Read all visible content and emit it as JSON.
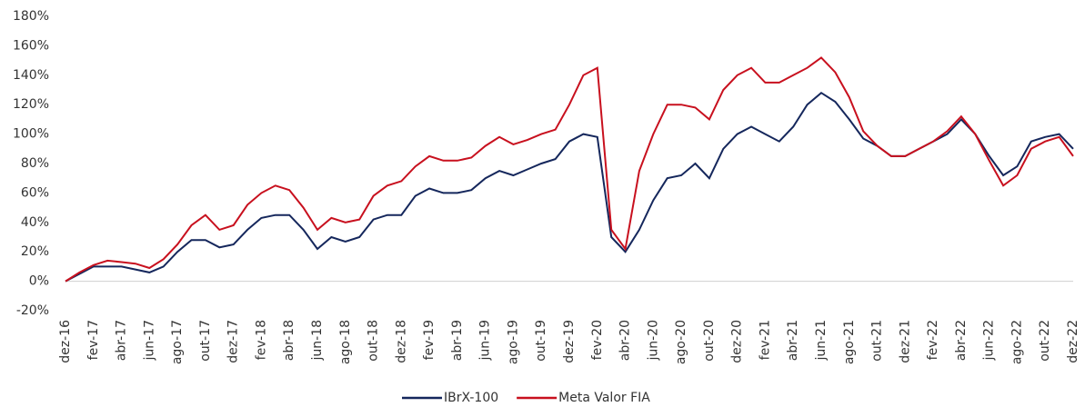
{
  "chart_data": {
    "type": "line",
    "categories": [
      "dez-16",
      null,
      "fev-17",
      null,
      "abr-17",
      null,
      "jun-17",
      null,
      "ago-17",
      null,
      "out-17",
      null,
      "dez-17",
      null,
      "fev-18",
      null,
      "abr-18",
      null,
      "jun-18",
      null,
      "ago-18",
      null,
      "out-18",
      null,
      "dez-18",
      null,
      "fev-19",
      null,
      "abr-19",
      null,
      "jun-19",
      null,
      "ago-19",
      null,
      "out-19",
      null,
      "dez-19",
      null,
      "fev-20",
      null,
      "abr-20",
      null,
      "jun-20",
      null,
      "ago-20",
      null,
      "out-20",
      null,
      "dez-20",
      null,
      "fev-21",
      null,
      "abr-21",
      null,
      "jun-21",
      null,
      "ago-21",
      null,
      "out-21",
      null,
      "dez-21",
      null,
      "fev-22",
      null,
      "abr-22",
      null,
      "jun-22",
      null,
      "ago-22",
      null,
      "out-22",
      null,
      "dez-22"
    ],
    "series": [
      {
        "name": "IBrX-100",
        "color": "#15275c",
        "values": [
          0,
          5,
          10,
          10,
          10,
          8,
          6,
          10,
          20,
          28,
          28,
          23,
          25,
          35,
          43,
          45,
          45,
          35,
          22,
          30,
          27,
          30,
          42,
          45,
          45,
          58,
          63,
          60,
          60,
          62,
          70,
          75,
          72,
          76,
          80,
          83,
          95,
          100,
          98,
          30,
          20,
          35,
          55,
          70,
          72,
          80,
          70,
          90,
          100,
          105,
          100,
          95,
          105,
          120,
          128,
          122,
          110,
          97,
          92,
          85,
          85,
          90,
          95,
          100,
          110,
          100,
          85,
          72,
          78,
          95,
          98,
          100,
          90
        ]
      },
      {
        "name": "Meta Valor FIA",
        "color": "#c8101e",
        "values": [
          0,
          6,
          11,
          14,
          13,
          12,
          9,
          15,
          25,
          38,
          45,
          35,
          38,
          52,
          60,
          65,
          62,
          50,
          35,
          43,
          40,
          42,
          58,
          65,
          68,
          78,
          85,
          82,
          82,
          84,
          92,
          98,
          93,
          96,
          100,
          103,
          120,
          140,
          145,
          35,
          22,
          75,
          100,
          120,
          120,
          118,
          110,
          130,
          140,
          145,
          135,
          135,
          140,
          145,
          152,
          142,
          125,
          102,
          92,
          85,
          85,
          90,
          95,
          102,
          112,
          100,
          82,
          65,
          72,
          90,
          95,
          98,
          85
        ]
      }
    ],
    "ylim": [
      -20,
      180
    ],
    "yticks": [
      {
        "value": -20,
        "label": "-20%"
      },
      {
        "value": 0,
        "label": "0%"
      },
      {
        "value": 20,
        "label": "20%"
      },
      {
        "value": 40,
        "label": "40%"
      },
      {
        "value": 60,
        "label": "60%"
      },
      {
        "value": 80,
        "label": "80%"
      },
      {
        "value": 100,
        "label": "100%"
      },
      {
        "value": 120,
        "label": "120%"
      },
      {
        "value": 140,
        "label": "140%"
      },
      {
        "value": 160,
        "label": "160%"
      },
      {
        "value": 180,
        "label": "180%"
      }
    ],
    "legend": "bottom"
  }
}
